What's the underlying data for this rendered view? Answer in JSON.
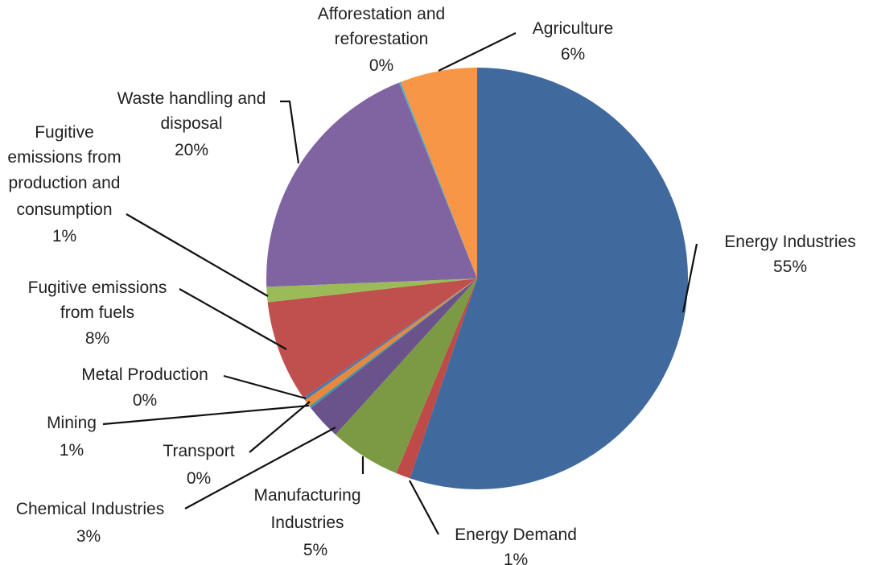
{
  "chart_data": {
    "type": "pie",
    "title": "",
    "start_angle_deg": 0,
    "direction": "clockwise",
    "slices": [
      {
        "name": "Energy Industries",
        "value_label": "55%",
        "value": 55.16,
        "color": "#406a9d"
      },
      {
        "name": "Energy Demand",
        "value_label": "1%",
        "value": 1.11,
        "color": "#be4b48"
      },
      {
        "name": "Manufacturing Industries",
        "value_label": "5%",
        "value": 5.46,
        "color": "#7c9a44"
      },
      {
        "name": "Chemical Industries",
        "value_label": "3%",
        "value": 2.73,
        "color": "#6a528a"
      },
      {
        "name": "Transport",
        "value_label": "0%",
        "value": 0.18,
        "color": "#4095ad"
      },
      {
        "name": "Mining",
        "value_label": "1%",
        "value": 0.56,
        "color": "#e8883c"
      },
      {
        "name": "Metal Production",
        "value_label": "0%",
        "value": 0.22,
        "color": "#4a78b0"
      },
      {
        "name": "Fugitive emissions from fuels",
        "value_label": "8%",
        "value": 7.78,
        "color": "#c0504d"
      },
      {
        "name": "Fugitive emissions from production and consumption",
        "value_label": "1%",
        "value": 1.17,
        "color": "#9bbb59"
      },
      {
        "name": "Waste handling and disposal",
        "value_label": "20%",
        "value": 19.59,
        "color": "#8064a2"
      },
      {
        "name": "Afforestation and reforestation",
        "value_label": "0%",
        "value": 0.13,
        "color": "#4bacc6"
      },
      {
        "name": "Agriculture",
        "value_label": "6%",
        "value": 5.91,
        "color": "#f79646"
      }
    ]
  }
}
